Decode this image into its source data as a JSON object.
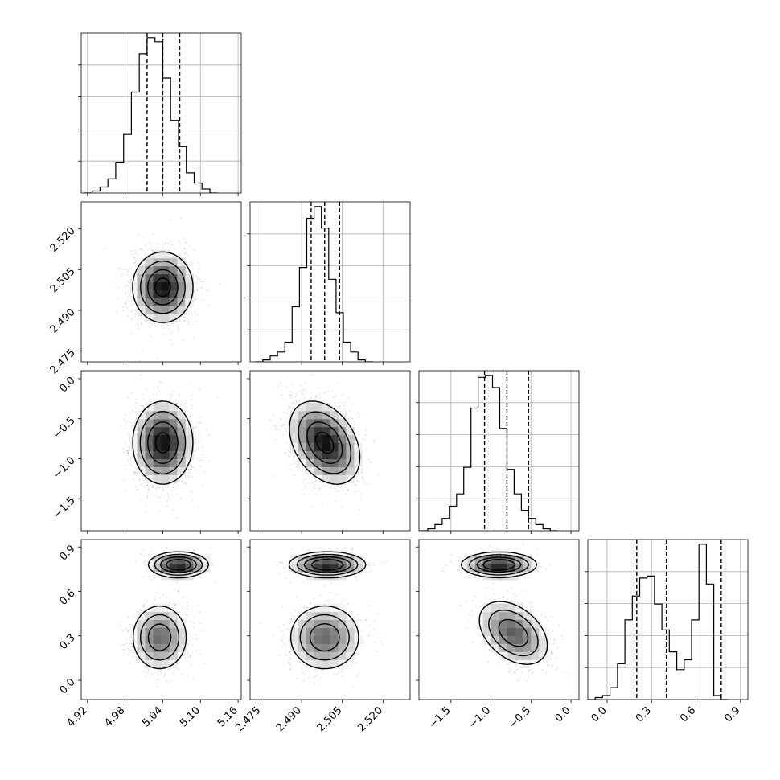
{
  "chart_data": {
    "type": "corner",
    "grid": true,
    "parameters": [
      {
        "range": [
          4.91,
          5.165
        ],
        "ticks": [
          4.92,
          4.98,
          5.04,
          5.1,
          5.16
        ],
        "tick_labels": [
          "4.92",
          "4.98",
          "5.04",
          "5.10",
          "5.16"
        ],
        "quantiles": [
          5.015,
          5.04,
          5.067
        ],
        "histogram": {
          "edges_start": 4.915,
          "bin_width": 0.0125,
          "counts": [
            0,
            1,
            3,
            7,
            15,
            29,
            50,
            69,
            77,
            75,
            57,
            36,
            23,
            10,
            5,
            2,
            0
          ]
        }
      },
      {
        "range": [
          2.471,
          2.53
        ],
        "ticks": [
          2.475,
          2.49,
          2.505,
          2.52
        ],
        "tick_labels": [
          "2.475",
          "2.490",
          "2.505",
          "2.520"
        ],
        "quantiles": [
          2.4935,
          2.4985,
          2.504
        ],
        "histogram": {
          "edges_start": 2.473,
          "bin_width": 0.0027,
          "counts": [
            0,
            1,
            3,
            5,
            10,
            28,
            48,
            73,
            79,
            68,
            42,
            25,
            10,
            5,
            1,
            0
          ]
        }
      },
      {
        "range": [
          -1.9,
          0.1
        ],
        "ticks": [
          -1.5,
          -1.0,
          -0.5,
          0.0
        ],
        "tick_labels": [
          "−1.5",
          "−1.0",
          "−0.5",
          "0.0"
        ],
        "quantiles": [
          -1.08,
          -0.8,
          -0.53
        ],
        "histogram": {
          "edges_start": -1.88,
          "bin_width": 0.09,
          "counts": [
            0,
            1,
            3,
            6,
            12,
            18,
            31,
            60,
            75,
            76,
            70,
            50,
            30,
            18,
            10,
            6,
            3,
            1,
            0
          ]
        }
      },
      {
        "range": [
          -0.13,
          0.95
        ],
        "ticks": [
          0.0,
          0.3,
          0.6,
          0.9
        ],
        "tick_labels": [
          "0.0",
          "0.3",
          "0.6",
          "0.9"
        ],
        "quantiles": [
          0.2,
          0.4,
          0.77
        ],
        "histogram": {
          "edges_start": -0.13,
          "bin_width": 0.05,
          "counts": [
            0,
            1,
            2,
            6,
            18,
            40,
            52,
            61,
            62,
            48,
            35,
            24,
            15,
            20,
            40,
            78,
            58,
            2,
            0
          ]
        }
      }
    ],
    "joint_2d": [
      {
        "x": 0,
        "y": 1,
        "components": [
          {
            "cx": 5.04,
            "cy": 2.4985,
            "sx": 0.024,
            "sy": 0.0065,
            "rho": 0.0,
            "w": 1.0
          }
        ]
      },
      {
        "x": 0,
        "y": 2,
        "components": [
          {
            "cx": 5.04,
            "cy": -0.8,
            "sx": 0.024,
            "sy": 0.26,
            "rho": 0.0,
            "w": 1.0
          }
        ]
      },
      {
        "x": 1,
        "y": 2,
        "components": [
          {
            "cx": 2.4985,
            "cy": -0.8,
            "sx": 0.0065,
            "sy": 0.26,
            "rho": -0.35,
            "w": 1.0
          }
        ]
      },
      {
        "x": 0,
        "y": 3,
        "components": [
          {
            "cx": 5.035,
            "cy": 0.29,
            "sx": 0.022,
            "sy": 0.11,
            "rho": 0.0,
            "w": 0.62
          },
          {
            "cx": 5.065,
            "cy": 0.78,
            "sx": 0.022,
            "sy": 0.04,
            "rho": 0.0,
            "w": 0.38
          }
        ]
      },
      {
        "x": 1,
        "y": 3,
        "components": [
          {
            "cx": 2.4985,
            "cy": 0.29,
            "sx": 0.0065,
            "sy": 0.11,
            "rho": 0.0,
            "w": 0.62
          },
          {
            "cx": 2.4995,
            "cy": 0.78,
            "sx": 0.0065,
            "sy": 0.04,
            "rho": 0.0,
            "w": 0.38
          }
        ]
      },
      {
        "x": 2,
        "y": 3,
        "components": [
          {
            "cx": -0.72,
            "cy": 0.32,
            "sx": 0.22,
            "sy": 0.11,
            "rho": -0.4,
            "w": 0.62
          },
          {
            "cx": -0.9,
            "cy": 0.78,
            "sx": 0.22,
            "sy": 0.04,
            "rho": 0.0,
            "w": 0.38
          }
        ]
      }
    ]
  }
}
